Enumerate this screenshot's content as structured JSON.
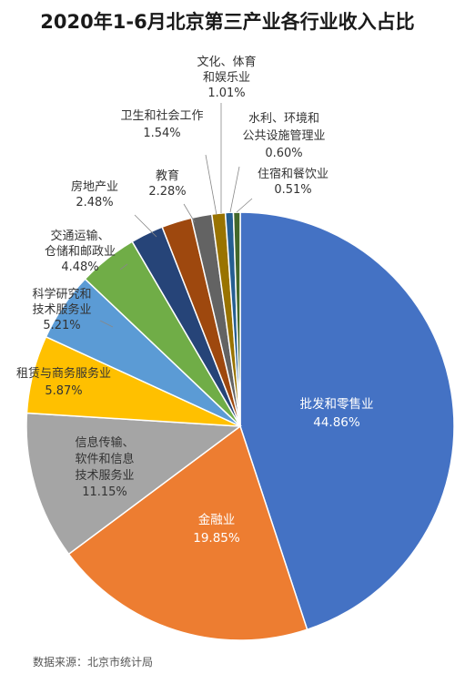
{
  "chart_data": {
    "type": "pie",
    "title": "2020年1-6月北京第三产业各行业收入占比",
    "categories": [
      "批发和零售业",
      "金融业",
      "信息传输、软件和信息技术服务业",
      "租赁与商务服务业",
      "科学研究和技术服务业",
      "交通运输、仓储和邮政业",
      "房地产业",
      "教育",
      "卫生和社会工作",
      "文化、体育和娱乐业",
      "水利、环境和公共设施管理业",
      "住宿和餐饮业"
    ],
    "label_lines": [
      [
        "批发和零售业"
      ],
      [
        "金融业"
      ],
      [
        "信息传输、",
        "软件和信息",
        "技术服务业"
      ],
      [
        "租赁与商务服务业"
      ],
      [
        "科学研究和",
        "技术服务业"
      ],
      [
        "交通运输、",
        "仓储和邮政业"
      ],
      [
        "房地产业"
      ],
      [
        "教育"
      ],
      [
        "卫生和社会工作"
      ],
      [
        "文化、体育",
        "和娱乐业"
      ],
      [
        "水利、环境和",
        "公共设施管理业"
      ],
      [
        "住宿和餐饮业"
      ]
    ],
    "values": [
      44.86,
      19.85,
      11.15,
      5.87,
      5.21,
      4.48,
      2.48,
      2.28,
      1.54,
      1.01,
      0.6,
      0.51
    ],
    "value_labels": [
      "44.86%",
      "19.85%",
      "11.15%",
      "5.87%",
      "5.21%",
      "4.48%",
      "2.48%",
      "2.28%",
      "1.54%",
      "1.01%",
      "0.60%",
      "0.51%"
    ],
    "colors": [
      "#4472c4",
      "#ed7d31",
      "#a5a5a5",
      "#ffc000",
      "#5b9bd5",
      "#70ad47",
      "#264478",
      "#9e480e",
      "#636363",
      "#997300",
      "#255e91",
      "#43682b"
    ],
    "legend": "none"
  },
  "source": "数据来源：北京市统计局"
}
